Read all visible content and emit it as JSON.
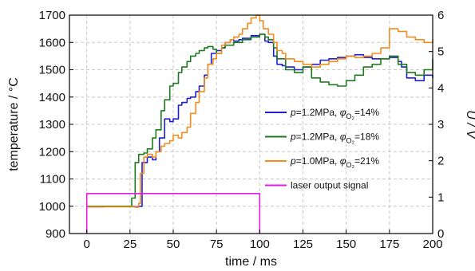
{
  "chart_data": {
    "type": "line",
    "xlabel": "time / ms",
    "ylabel_left": "temperature / °C",
    "ylabel_right": "U / V",
    "xlim": [
      -10,
      200
    ],
    "ylim_left": [
      900,
      1700
    ],
    "ylim_right": [
      0,
      6
    ],
    "x_ticks": [
      0,
      25,
      50,
      75,
      100,
      125,
      150,
      175,
      200
    ],
    "y_ticks_left": [
      900,
      1000,
      1100,
      1200,
      1300,
      1400,
      1500,
      1600,
      1700
    ],
    "y_ticks_right": [
      0,
      1,
      2,
      3,
      4,
      5,
      6
    ],
    "grid": true,
    "legend_position": "center-right",
    "series": [
      {
        "name": "p=1.2MPa, φO2=14%",
        "legend": {
          "p": "p",
          "p_rest": "=1.2MPa,  ",
          "phi": "φ",
          "sub": "O₂",
          "rest": "=14%"
        },
        "color": "#1f1fd1",
        "axis": "left",
        "x": [
          0,
          10,
          20,
          28,
          30,
          32,
          35,
          38,
          40,
          42,
          45,
          48,
          50,
          53,
          55,
          58,
          60,
          63,
          65,
          68,
          70,
          72,
          75,
          78,
          80,
          83,
          85,
          88,
          90,
          95,
          100,
          103,
          105,
          108,
          110,
          113,
          115,
          120,
          125,
          130,
          135,
          140,
          145,
          150,
          155,
          160,
          165,
          170,
          175,
          180,
          182,
          185,
          190,
          195,
          200
        ],
        "y": [
          998,
          999,
          999,
          998,
          1000,
          1160,
          1180,
          1170,
          1200,
          1250,
          1320,
          1310,
          1320,
          1370,
          1380,
          1395,
          1400,
          1420,
          1440,
          1480,
          1520,
          1560,
          1570,
          1580,
          1600,
          1610,
          1605,
          1610,
          1615,
          1625,
          1630,
          1605,
          1600,
          1550,
          1520,
          1515,
          1510,
          1500,
          1510,
          1520,
          1535,
          1540,
          1545,
          1550,
          1555,
          1545,
          1540,
          1540,
          1545,
          1530,
          1510,
          1470,
          1460,
          1480,
          1470
        ]
      },
      {
        "name": "p=1.2MPa, φO2=18%",
        "legend": {
          "p": "p",
          "p_rest": "=1.2MPa,  ",
          "phi": "φ",
          "sub": "O₂",
          "rest": "=18%"
        },
        "color": "#1e7a1e",
        "axis": "left",
        "x": [
          0,
          10,
          20,
          25,
          26,
          28,
          30,
          33,
          35,
          38,
          40,
          43,
          45,
          48,
          50,
          53,
          55,
          58,
          60,
          63,
          65,
          68,
          70,
          73,
          75,
          78,
          80,
          85,
          90,
          95,
          100,
          103,
          105,
          108,
          110,
          115,
          120,
          125,
          130,
          135,
          140,
          145,
          150,
          155,
          160,
          165,
          170,
          175,
          180,
          185,
          190,
          195,
          200
        ],
        "y": [
          1000,
          1000,
          1000,
          1000,
          1030,
          1160,
          1190,
          1195,
          1210,
          1250,
          1280,
          1350,
          1390,
          1440,
          1450,
          1490,
          1510,
          1530,
          1550,
          1560,
          1570,
          1580,
          1585,
          1575,
          1560,
          1580,
          1590,
          1600,
          1610,
          1620,
          1630,
          1620,
          1610,
          1580,
          1540,
          1500,
          1490,
          1510,
          1470,
          1455,
          1445,
          1440,
          1460,
          1480,
          1510,
          1520,
          1540,
          1550,
          1520,
          1490,
          1480,
          1500,
          1540
        ]
      },
      {
        "name": "p=1.0MPa, φO2=21%",
        "legend": {
          "p": "p",
          "p_rest": "=1.0MPa,  ",
          "phi": "φ",
          "sub": "O₂",
          "rest": "=21%"
        },
        "color": "#f28c1e",
        "axis": "left",
        "x": [
          0,
          10,
          20,
          28,
          30,
          31,
          33,
          35,
          38,
          40,
          43,
          45,
          48,
          50,
          53,
          55,
          58,
          60,
          63,
          65,
          68,
          70,
          73,
          75,
          78,
          80,
          83,
          85,
          88,
          90,
          93,
          95,
          98,
          100,
          102,
          105,
          108,
          110,
          113,
          115,
          120,
          125,
          130,
          135,
          140,
          145,
          150,
          155,
          160,
          165,
          170,
          175,
          180,
          185,
          190,
          195,
          200
        ],
        "y": [
          998,
          998,
          998,
          996,
          1010,
          1120,
          1180,
          1190,
          1180,
          1200,
          1220,
          1230,
          1240,
          1260,
          1250,
          1270,
          1290,
          1340,
          1380,
          1420,
          1470,
          1520,
          1540,
          1560,
          1590,
          1600,
          1610,
          1620,
          1630,
          1650,
          1670,
          1690,
          1700,
          1680,
          1650,
          1630,
          1600,
          1570,
          1560,
          1540,
          1530,
          1520,
          1510,
          1520,
          1530,
          1540,
          1550,
          1545,
          1550,
          1560,
          1580,
          1650,
          1640,
          1620,
          1610,
          1600,
          1610
        ]
      },
      {
        "name": "laser output signal",
        "legend": {
          "text": "laser output signal"
        },
        "color": "#e51ce5",
        "axis": "right",
        "x": [
          0,
          0,
          100,
          100
        ],
        "y": [
          0,
          1.1,
          1.1,
          0
        ]
      }
    ]
  }
}
